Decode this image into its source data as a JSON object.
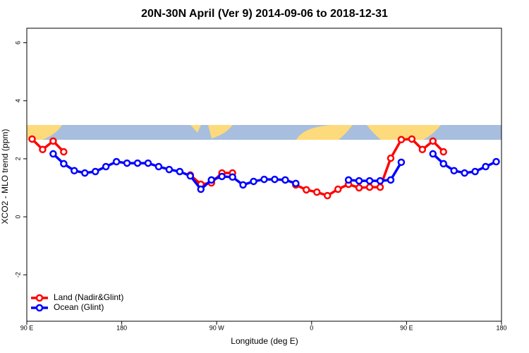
{
  "chart_data": {
    "type": "line",
    "title": "20N-30N April (Ver 9)   2014-09-06 to 2018-12-31",
    "x_label": "Longitude (deg E)",
    "y_label": "XCO2 - MLO trend (ppm)",
    "x": [
      95,
      105,
      115,
      125,
      135,
      145,
      155,
      165,
      175,
      185,
      195,
      205,
      215,
      225,
      235,
      245,
      255,
      265,
      275,
      285,
      295,
      305,
      315,
      325,
      335,
      345,
      355,
      365,
      375,
      385,
      395,
      405,
      415,
      425,
      435,
      445,
      455,
      465,
      475,
      485,
      495,
      505,
      515,
      525,
      535
    ],
    "series": [
      {
        "name": "Land (Nadir&Glint)",
        "color": "#ff0000",
        "values": [
          2.68,
          2.32,
          2.61,
          2.24,
          null,
          null,
          null,
          null,
          null,
          null,
          null,
          null,
          null,
          null,
          null,
          1.44,
          1.12,
          1.17,
          1.51,
          1.51,
          null,
          null,
          null,
          null,
          null,
          1.1,
          0.93,
          0.85,
          0.73,
          0.95,
          1.12,
          1.0,
          1.02,
          1.02,
          2.02,
          2.66,
          2.68,
          2.32,
          2.61,
          2.24,
          null,
          null,
          null,
          null,
          null
        ]
      },
      {
        "name": "Ocean (Glint)",
        "color": "#0000ff",
        "values": [
          null,
          null,
          2.17,
          1.83,
          1.59,
          1.51,
          1.56,
          1.73,
          1.9,
          1.85,
          1.85,
          1.85,
          1.73,
          1.63,
          1.56,
          1.41,
          0.95,
          1.27,
          1.39,
          1.37,
          1.1,
          1.22,
          1.29,
          1.29,
          1.27,
          1.15,
          null,
          null,
          null,
          null,
          1.27,
          1.24,
          1.24,
          1.24,
          1.27,
          1.88,
          null,
          null,
          2.17,
          1.83,
          1.59,
          1.51,
          1.56,
          1.73,
          1.9
        ]
      }
    ],
    "xlim": [
      90,
      540
    ],
    "xticks": [
      {
        "value": 90,
        "label": "90 E"
      },
      180,
      {
        "value": 270,
        "label": "90 W"
      },
      {
        "value": 360,
        "label": "0"
      },
      {
        "value": 450,
        "label": "90 E"
      },
      {
        "value": 540,
        "label": "180"
      }
    ],
    "ylim": [
      -3.6,
      6.5
    ],
    "yticks": [
      -2,
      0,
      2,
      4,
      6
    ],
    "legend": "bottom-left"
  }
}
